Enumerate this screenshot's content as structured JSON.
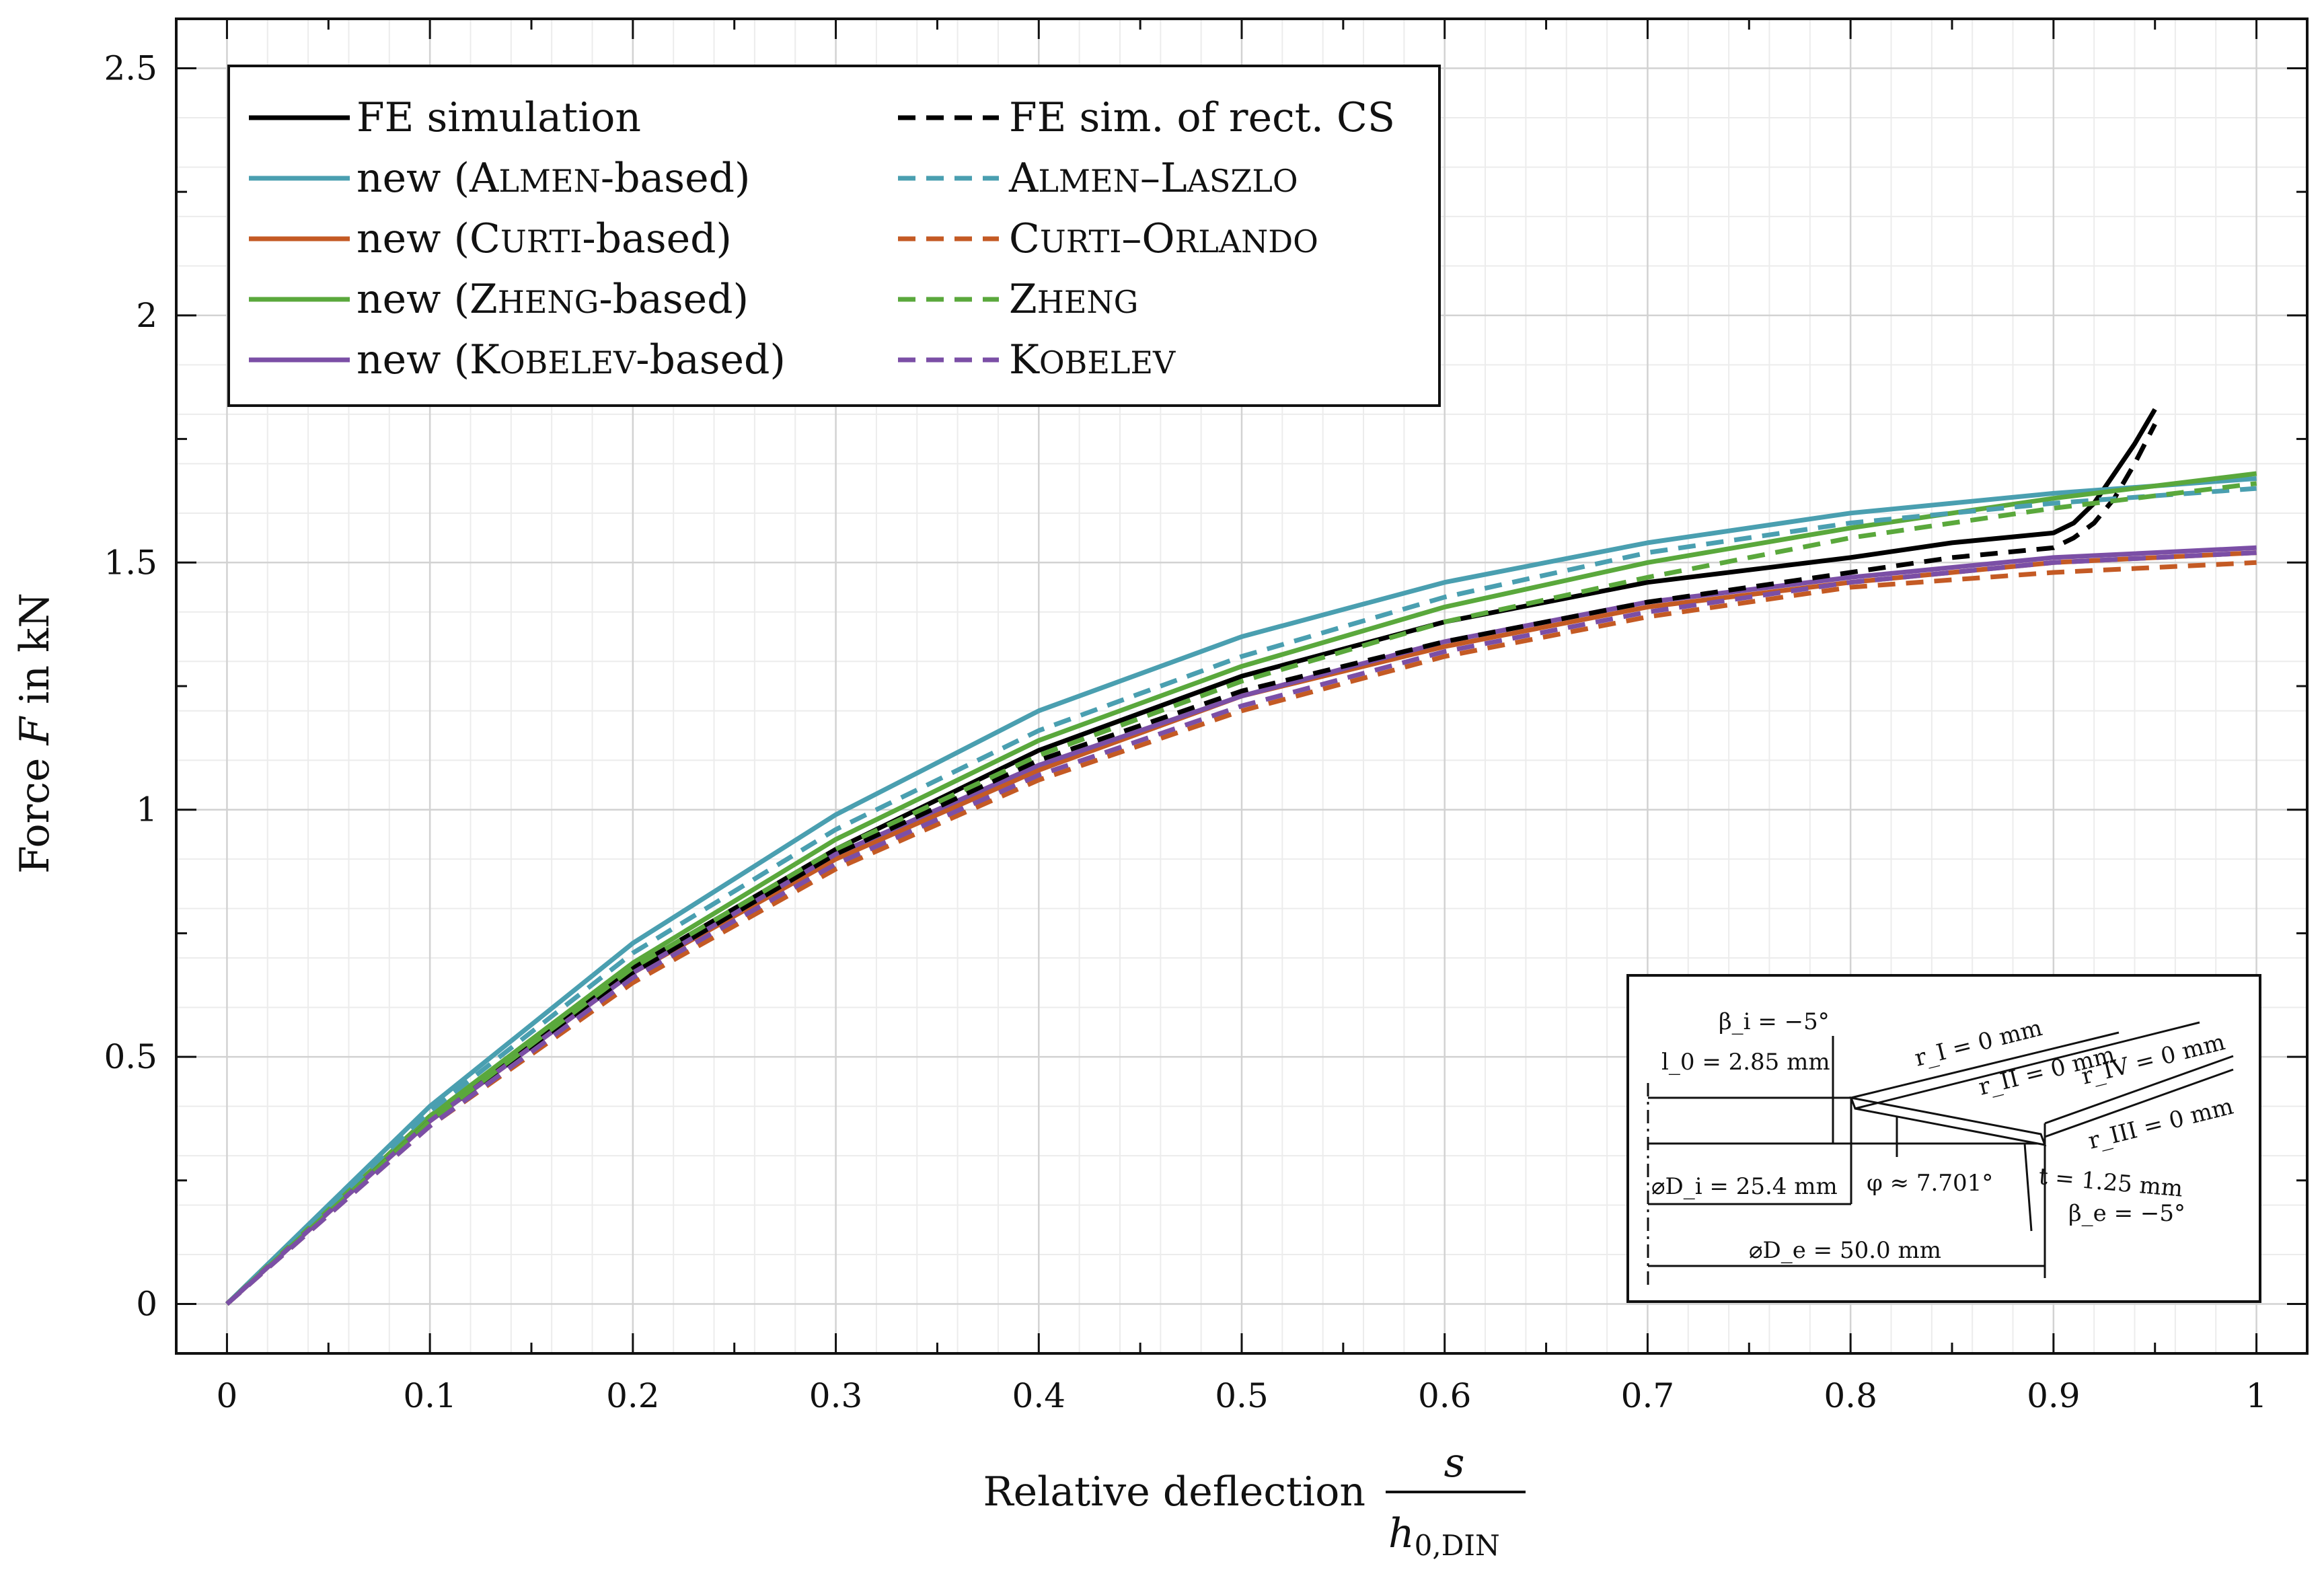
{
  "chart_data": {
    "type": "line",
    "xlabel_text": "Relative deflection",
    "xlabel_frac_num": "s",
    "xlabel_frac_den_main": "h",
    "xlabel_frac_den_sub": "0,DIN",
    "ylabel_prefix": "Force ",
    "ylabel_var": "F",
    "ylabel_suffix": " in kN",
    "xlim": [
      -0.025,
      1.025
    ],
    "ylim": [
      -0.1,
      2.6
    ],
    "xticks": [
      0,
      0.1,
      0.2,
      0.3,
      0.4,
      0.5,
      0.6,
      0.7,
      0.8,
      0.9,
      1
    ],
    "xtick_labels": [
      "0",
      "0.1",
      "0.2",
      "0.3",
      "0.4",
      "0.5",
      "0.6",
      "0.7",
      "0.8",
      "0.9",
      "1"
    ],
    "yticks": [
      0,
      0.5,
      1,
      1.5,
      2,
      2.5
    ],
    "ytick_labels": [
      "0",
      "0.5",
      "1",
      "1.5",
      "2",
      "2.5"
    ],
    "grid": true,
    "legend_position": "top-left",
    "series": [
      {
        "name": "FE simulation",
        "color": "#000000",
        "dash": "solid",
        "x": [
          0,
          0.1,
          0.2,
          0.3,
          0.4,
          0.5,
          0.6,
          0.7,
          0.8,
          0.85,
          0.9,
          0.91,
          0.92,
          0.93,
          0.94,
          0.95
        ],
        "y": [
          0,
          0.38,
          0.68,
          0.92,
          1.12,
          1.27,
          1.38,
          1.46,
          1.51,
          1.54,
          1.56,
          1.58,
          1.62,
          1.68,
          1.74,
          1.81
        ]
      },
      {
        "name": "new (Almen-based)",
        "color": "#4a9fb0",
        "dash": "solid",
        "x": [
          0,
          0.1,
          0.2,
          0.3,
          0.4,
          0.5,
          0.6,
          0.7,
          0.8,
          0.9,
          1.0
        ],
        "y": [
          0,
          0.4,
          0.73,
          0.99,
          1.2,
          1.35,
          1.46,
          1.54,
          1.6,
          1.64,
          1.67
        ]
      },
      {
        "name": "new (Curti-based)",
        "color": "#c45a24",
        "dash": "solid",
        "x": [
          0,
          0.1,
          0.2,
          0.3,
          0.4,
          0.5,
          0.6,
          0.7,
          0.8,
          0.9,
          1.0
        ],
        "y": [
          0,
          0.37,
          0.67,
          0.9,
          1.08,
          1.23,
          1.33,
          1.41,
          1.46,
          1.5,
          1.52
        ]
      },
      {
        "name": "new (Zheng-based)",
        "color": "#5aa83c",
        "dash": "solid",
        "x": [
          0,
          0.1,
          0.2,
          0.3,
          0.4,
          0.5,
          0.6,
          0.7,
          0.8,
          0.9,
          1.0
        ],
        "y": [
          0,
          0.38,
          0.69,
          0.94,
          1.14,
          1.29,
          1.41,
          1.5,
          1.57,
          1.63,
          1.68
        ]
      },
      {
        "name": "new (Kobelev-based)",
        "color": "#7b4fa6",
        "dash": "solid",
        "x": [
          0,
          0.1,
          0.2,
          0.3,
          0.4,
          0.5,
          0.6,
          0.7,
          0.8,
          0.9,
          1.0
        ],
        "y": [
          0,
          0.37,
          0.67,
          0.91,
          1.09,
          1.23,
          1.34,
          1.42,
          1.47,
          1.51,
          1.53
        ]
      },
      {
        "name": "FE sim. of rect. CS",
        "color": "#000000",
        "dash": "dashed",
        "x": [
          0,
          0.1,
          0.2,
          0.3,
          0.4,
          0.5,
          0.6,
          0.7,
          0.8,
          0.85,
          0.9,
          0.91,
          0.92,
          0.93,
          0.94,
          0.95
        ],
        "y": [
          0,
          0.37,
          0.67,
          0.91,
          1.1,
          1.24,
          1.34,
          1.42,
          1.48,
          1.51,
          1.53,
          1.55,
          1.58,
          1.63,
          1.7,
          1.78
        ]
      },
      {
        "name": "Almen–Laszlo",
        "color": "#4a9fb0",
        "dash": "dashed",
        "x": [
          0,
          0.1,
          0.2,
          0.3,
          0.4,
          0.5,
          0.6,
          0.7,
          0.8,
          0.9,
          1.0
        ],
        "y": [
          0,
          0.39,
          0.71,
          0.96,
          1.16,
          1.31,
          1.43,
          1.52,
          1.58,
          1.62,
          1.65
        ]
      },
      {
        "name": "Curti–Orlando",
        "color": "#c45a24",
        "dash": "dashed",
        "x": [
          0,
          0.1,
          0.2,
          0.3,
          0.4,
          0.5,
          0.6,
          0.7,
          0.8,
          0.9,
          1.0
        ],
        "y": [
          0,
          0.36,
          0.65,
          0.88,
          1.06,
          1.2,
          1.31,
          1.39,
          1.45,
          1.48,
          1.5
        ]
      },
      {
        "name": "Zheng",
        "color": "#5aa83c",
        "dash": "dashed",
        "x": [
          0,
          0.1,
          0.2,
          0.3,
          0.4,
          0.5,
          0.6,
          0.7,
          0.8,
          0.9,
          1.0
        ],
        "y": [
          0,
          0.37,
          0.68,
          0.92,
          1.11,
          1.26,
          1.38,
          1.47,
          1.55,
          1.61,
          1.66
        ]
      },
      {
        "name": "Kobelev",
        "color": "#7b4fa6",
        "dash": "dashed",
        "x": [
          0,
          0.1,
          0.2,
          0.3,
          0.4,
          0.5,
          0.6,
          0.7,
          0.8,
          0.9,
          1.0
        ],
        "y": [
          0,
          0.36,
          0.66,
          0.89,
          1.07,
          1.21,
          1.32,
          1.4,
          1.46,
          1.5,
          1.52
        ]
      }
    ],
    "legend_left": [
      {
        "label": "FE simulation",
        "parts": [
          {
            "t": "FE simulation",
            "sc": false
          }
        ]
      },
      {
        "label": "new (Almen-based)",
        "parts": [
          {
            "t": "new (",
            "sc": false
          },
          {
            "t": "Almen",
            "sc": true
          },
          {
            "t": "-based)",
            "sc": false
          }
        ]
      },
      {
        "label": "new (Curti-based)",
        "parts": [
          {
            "t": "new (",
            "sc": false
          },
          {
            "t": "Curti",
            "sc": true
          },
          {
            "t": "-based)",
            "sc": false
          }
        ]
      },
      {
        "label": "new (Zheng-based)",
        "parts": [
          {
            "t": "new (",
            "sc": false
          },
          {
            "t": "Zheng",
            "sc": true
          },
          {
            "t": "-based)",
            "sc": false
          }
        ]
      },
      {
        "label": "new (Kobelev-based)",
        "parts": [
          {
            "t": "new (",
            "sc": false
          },
          {
            "t": "Kobelev",
            "sc": true
          },
          {
            "t": "-based)",
            "sc": false
          }
        ]
      }
    ],
    "legend_right": [
      {
        "label": "FE sim. of rect. CS",
        "parts": [
          {
            "t": "FE sim. of rect. CS",
            "sc": false
          }
        ]
      },
      {
        "label": "Almen–Laszlo",
        "parts": [
          {
            "t": "Almen",
            "sc": true
          },
          {
            "t": "–",
            "sc": false
          },
          {
            "t": "Laszlo",
            "sc": true
          }
        ]
      },
      {
        "label": "Curti–Orlando",
        "parts": [
          {
            "t": "Curti",
            "sc": true
          },
          {
            "t": "–",
            "sc": false
          },
          {
            "t": "Orlando",
            "sc": true
          }
        ]
      },
      {
        "label": "Zheng",
        "parts": [
          {
            "t": "Zheng",
            "sc": true
          }
        ]
      },
      {
        "label": "Kobelev",
        "parts": [
          {
            "t": "Kobelev",
            "sc": true
          }
        ]
      }
    ],
    "inset": {
      "beta_i": "β_i = −5°",
      "l0": "l_0 = 2.85 mm",
      "r_I": "r_I = 0 mm",
      "r_II": "r_II = 0 mm",
      "r_IV": "r_IV = 0 mm",
      "r_III": "r_III = 0 mm",
      "D_i": "⌀D_i = 25.4 mm",
      "phi": "φ ≈ 7.701°",
      "t": "t = 1.25 mm",
      "beta_e": "β_e = −5°",
      "D_e": "⌀D_e = 50.0 mm"
    }
  }
}
